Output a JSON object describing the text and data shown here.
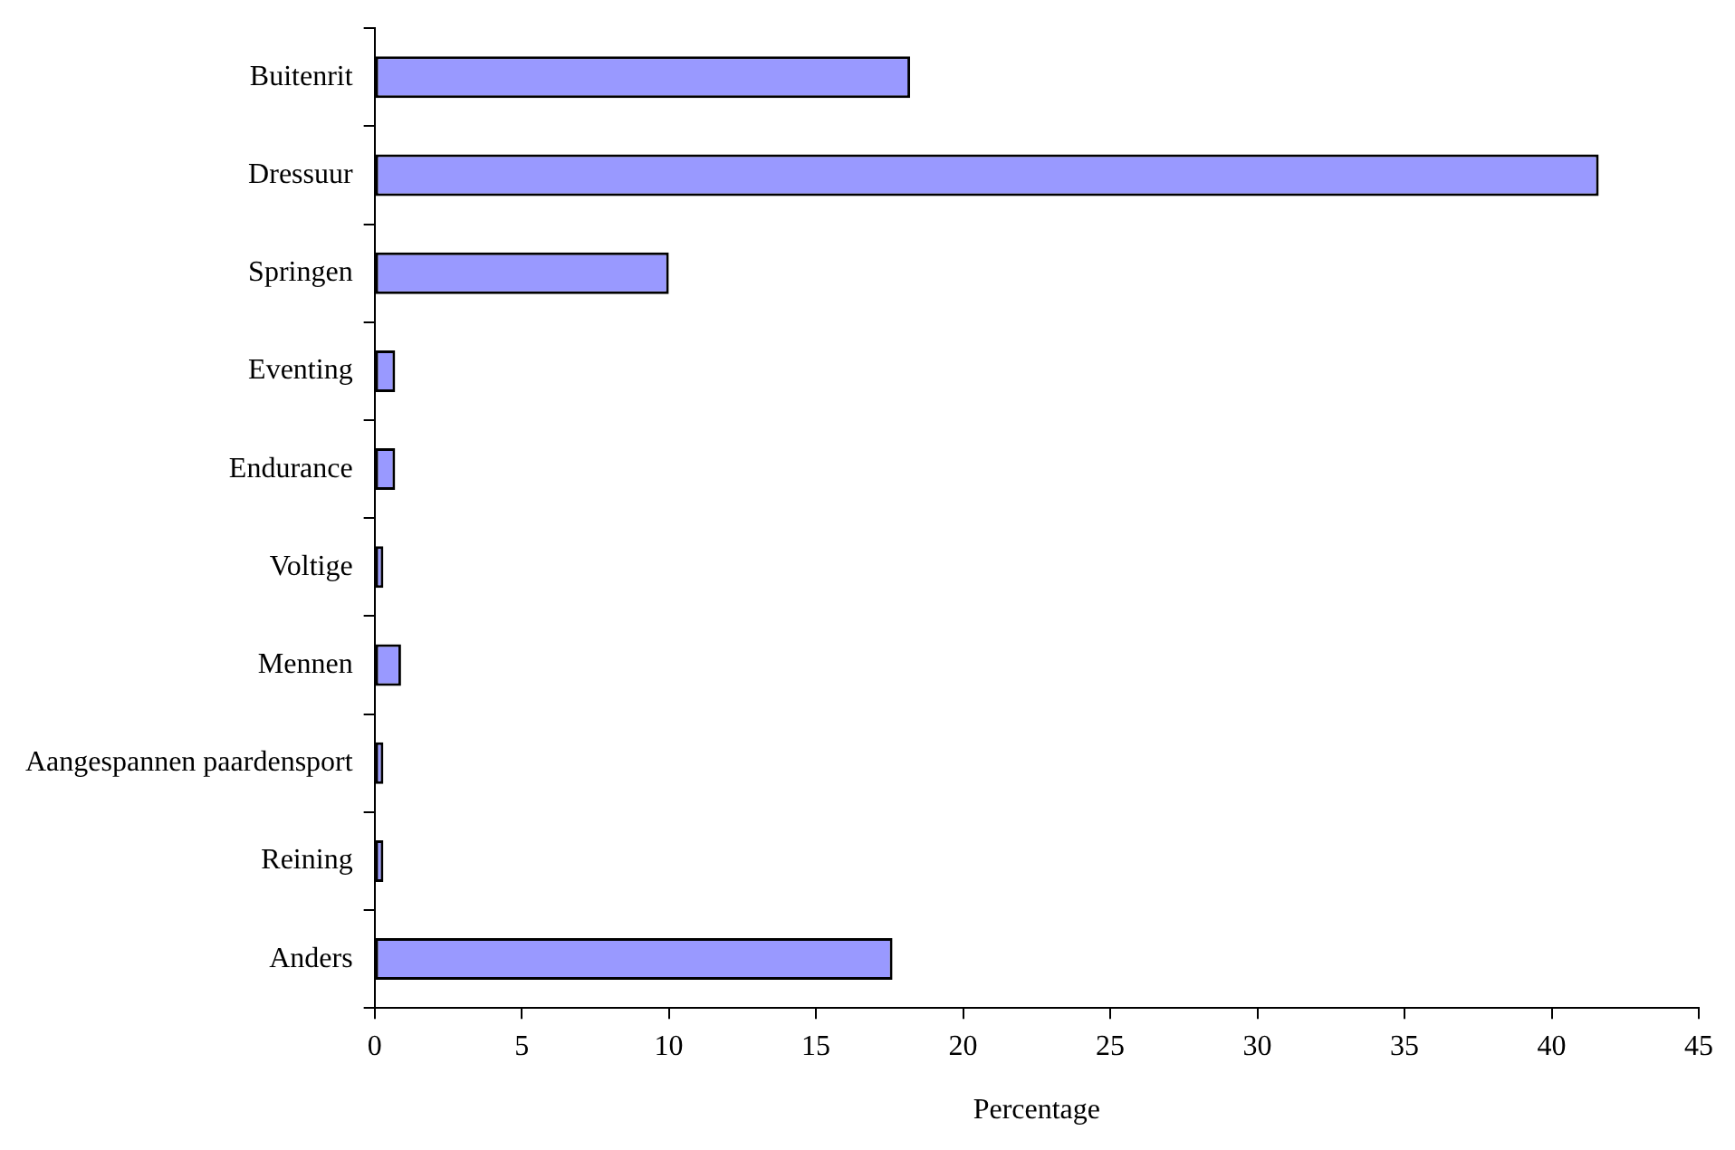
{
  "chart_data": {
    "type": "bar",
    "orientation": "horizontal",
    "xlabel": "Percentage",
    "categories": [
      "Buitenrit",
      "Dressuur",
      "Springen",
      "Eventing",
      "Endurance",
      "Voltige",
      "Mennen",
      "Aangespannen paardensport",
      "Reining",
      "Anders"
    ],
    "values": [
      18.2,
      41.6,
      10.0,
      0.7,
      0.7,
      0.3,
      0.9,
      0.3,
      0.3,
      17.6
    ],
    "color": "#9999ff",
    "xlim": [
      0,
      45
    ],
    "xticks": [
      0,
      5,
      10,
      15,
      20,
      25,
      30,
      35,
      40,
      45
    ],
    "grid": false,
    "legend": false
  }
}
